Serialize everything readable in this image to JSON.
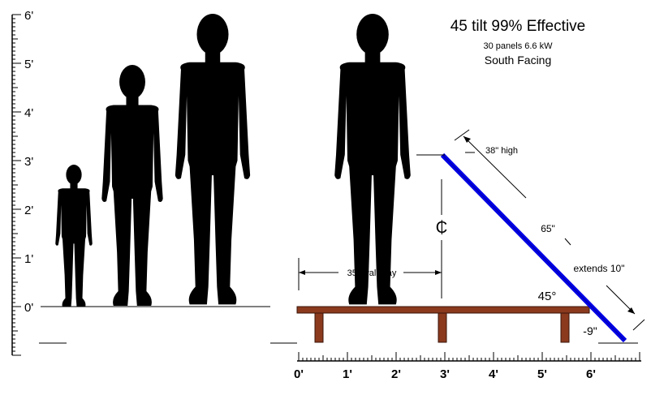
{
  "title": "45  tilt  99% Effective",
  "subtitle_panels": "30 panels   6.6 kW",
  "subtitle_orientation": "South Facing",
  "left_scale": {
    "ticks_feet": [
      "6'",
      "5'",
      "4'",
      "3'",
      "2'",
      "1'",
      "0'"
    ]
  },
  "bottom_scale": {
    "ticks_feet": [
      "0'",
      "1'",
      "2'",
      "3'",
      "4'",
      "5'",
      "6'"
    ]
  },
  "annotations": {
    "walkway": "35\" walkway",
    "height_top": "38\" high",
    "panel_length": "65\"",
    "extends": "extends 10\"",
    "angle": "45°",
    "below_deck": "-9\"",
    "centerline": "₵"
  },
  "colors": {
    "panel": "#0000e6",
    "deck": "#8b3a1e",
    "silhouette": "#000000"
  },
  "icons": [
    "person-silhouette",
    "solar-panel",
    "deck-platform"
  ]
}
